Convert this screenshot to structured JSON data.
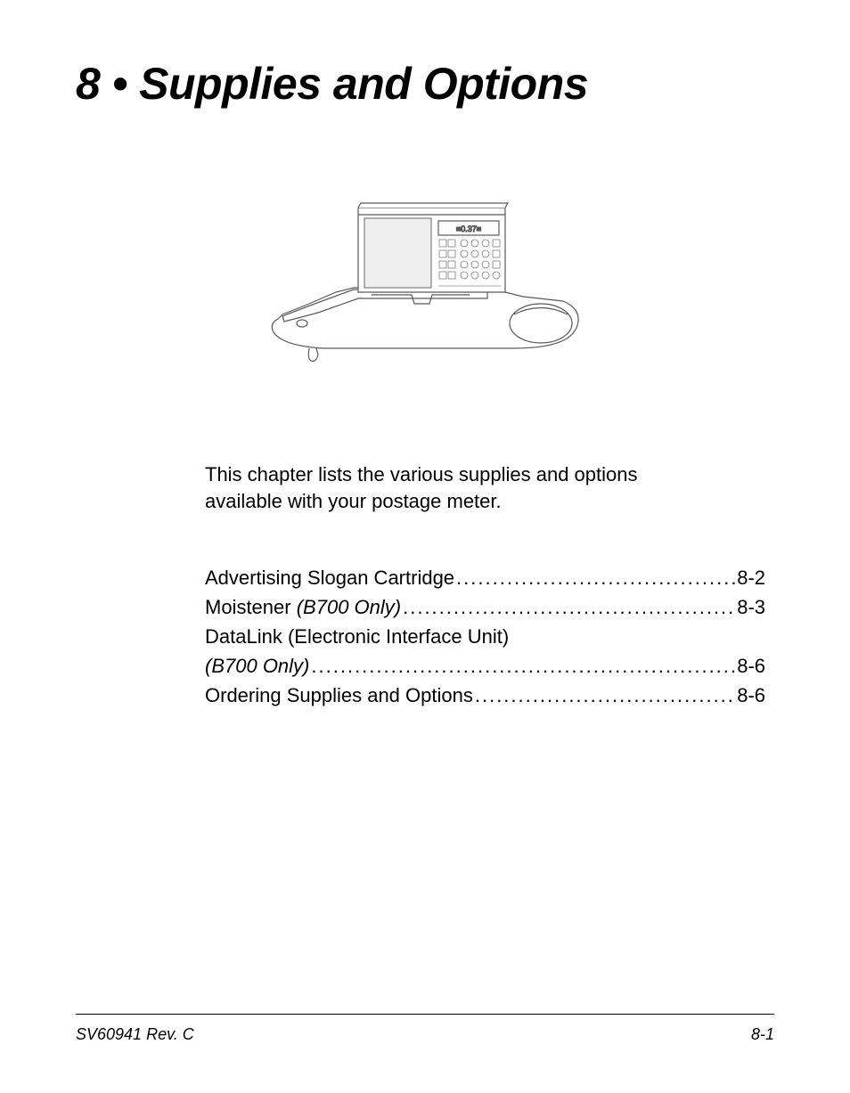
{
  "chapter": {
    "number": "8",
    "separator": "•",
    "title": "Supplies and Options"
  },
  "illustration": {
    "stroke_color": "#5a5a5a",
    "stroke_width": 1.2,
    "fill": "#ffffff",
    "display_text": "≡0.37≡"
  },
  "intro": {
    "line1": "This chapter lists the various supplies and options",
    "line2": "available with your postage meter."
  },
  "toc": [
    {
      "label": "Advertising Slogan Cartridge",
      "label_italic": "",
      "page": "8-2",
      "has_page": true
    },
    {
      "label": "Moistener ",
      "label_italic": "(B700 Only)",
      "page": "8-3",
      "has_page": true
    },
    {
      "label": "DataLink (Electronic Interface Unit)",
      "label_italic": "",
      "page": "",
      "has_page": false
    },
    {
      "label": "",
      "label_italic": "(B700 Only) ",
      "page": "8-6",
      "has_page": true
    },
    {
      "label": "Ordering Supplies and Options ",
      "label_italic": "",
      "page": "8-6",
      "has_page": true
    }
  ],
  "footer": {
    "left": "SV60941 Rev. C",
    "right": "8-1"
  },
  "styling": {
    "title_fontsize": 50,
    "body_fontsize": 22,
    "footer_fontsize": 18,
    "text_color": "#000000",
    "background_color": "#ffffff"
  }
}
